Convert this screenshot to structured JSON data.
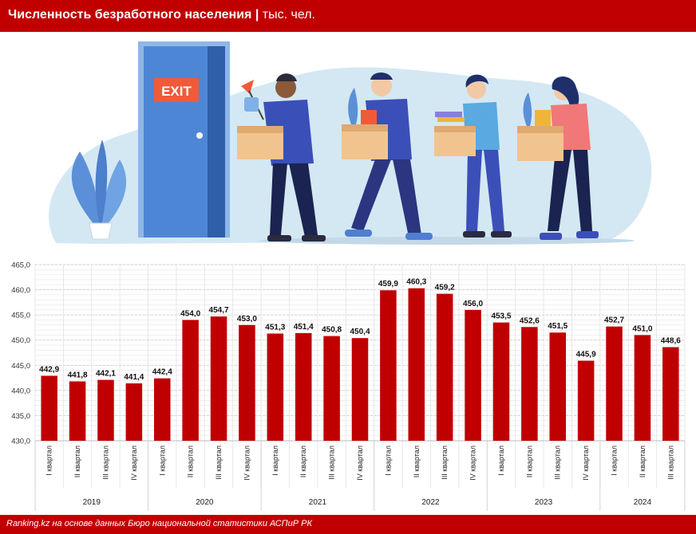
{
  "header": {
    "title": "Численность безработного населения",
    "separator": " | ",
    "unit": "тыс. чел."
  },
  "illustration": {
    "door_sign": "EXIT"
  },
  "chart_data": {
    "type": "bar",
    "title": "Численность безработного населения",
    "ylabel": "",
    "ylim": [
      430,
      465
    ],
    "ytick_step": 5,
    "grid": true,
    "bar_color": "#c00000",
    "categories": [
      "I квартал",
      "II квартал",
      "III квартал",
      "IV квартал",
      "I квартал",
      "II квартал",
      "III квартал",
      "IV квартал",
      "I квартал",
      "II квартал",
      "III квартал",
      "IV квартал",
      "I квартал",
      "II квартал",
      "III квартал",
      "IV квартал",
      "I квартал",
      "II квартал",
      "III квартал",
      "IV квартал",
      "I квартал",
      "II квартал",
      "III квартал"
    ],
    "values": [
      442.9,
      441.8,
      442.1,
      441.4,
      442.4,
      454.0,
      454.7,
      453.0,
      451.3,
      451.4,
      450.8,
      450.4,
      459.9,
      460.3,
      459.2,
      456.0,
      453.5,
      452.6,
      451.5,
      445.9,
      452.7,
      451.0,
      448.6
    ],
    "value_labels": [
      "442,9",
      "441,8",
      "442,1",
      "441,4",
      "442,4",
      "454,0",
      "454,7",
      "453,0",
      "451,3",
      "451,4",
      "450,8",
      "450,4",
      "459,9",
      "460,3",
      "459,2",
      "456,0",
      "453,5",
      "452,6",
      "451,5",
      "445,9",
      "452,7",
      "451,0",
      "448,6"
    ],
    "ytick_labels": [
      "430,0",
      "435,0",
      "440,0",
      "445,0",
      "450,0",
      "455,0",
      "460,0",
      "465,0"
    ],
    "year_groups": [
      {
        "label": "2019",
        "count": 4
      },
      {
        "label": "2020",
        "count": 4
      },
      {
        "label": "2021",
        "count": 4
      },
      {
        "label": "2022",
        "count": 4
      },
      {
        "label": "2023",
        "count": 4
      },
      {
        "label": "2024",
        "count": 3
      }
    ]
  },
  "footer": {
    "source": "Ranking.kz на основе данных Бюро национальной статистики АСПиР РК"
  }
}
